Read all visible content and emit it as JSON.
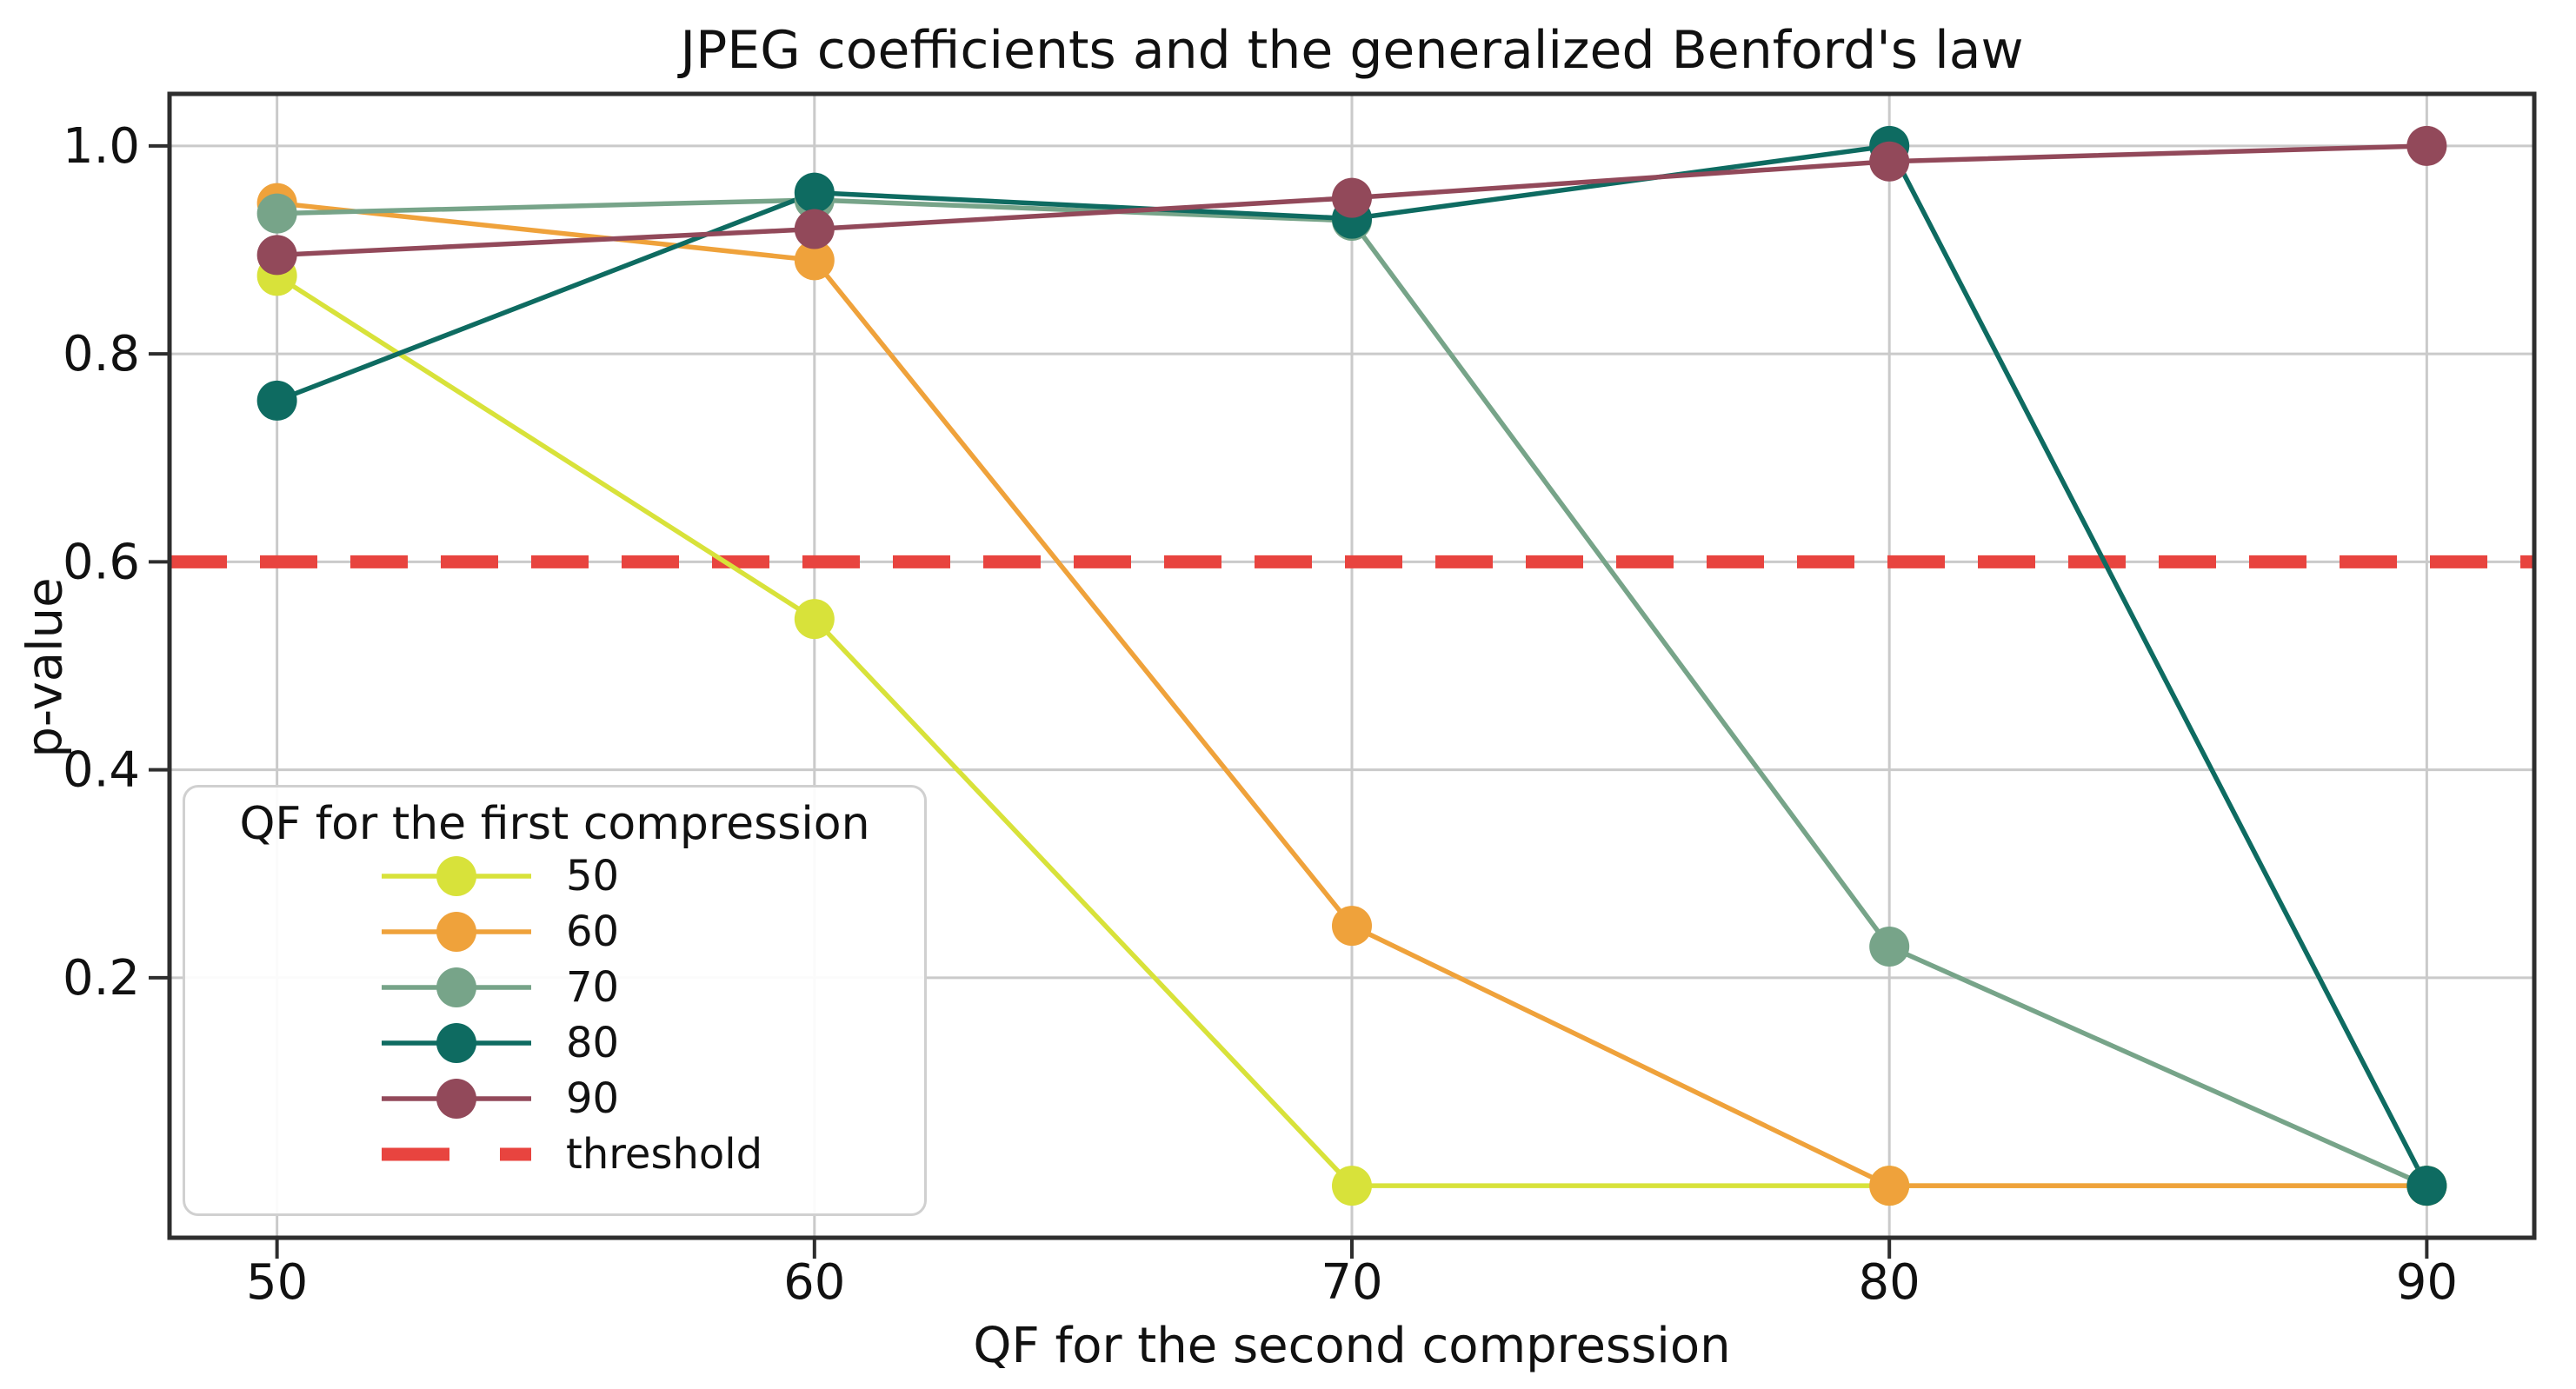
{
  "chart_data": {
    "type": "line",
    "title": "JPEG coefficients and the generalized Benford's law",
    "xlabel": "QF for the second compression",
    "ylabel": "p-value",
    "x": [
      50,
      60,
      70,
      80,
      90
    ],
    "xtick_labels": [
      "50",
      "60",
      "70",
      "80",
      "90"
    ],
    "ytick_values": [
      0.2,
      0.4,
      0.6,
      0.8,
      1.0
    ],
    "ytick_labels": [
      "0.2",
      "0.4",
      "0.6",
      "0.8",
      "1.0"
    ],
    "xlim": [
      48,
      92
    ],
    "ylim": [
      -0.05,
      1.05
    ],
    "grid": true,
    "legend": {
      "title": "QF for the first compression",
      "position": "lower left"
    },
    "series": [
      {
        "name": "50",
        "color": "#d8e23a",
        "values": [
          0.875,
          0.545,
          0.0,
          0.0,
          0.0
        ]
      },
      {
        "name": "60",
        "color": "#efa23b",
        "values": [
          0.945,
          0.89,
          0.25,
          0.0,
          0.0
        ]
      },
      {
        "name": "70",
        "color": "#77a489",
        "values": [
          0.935,
          0.948,
          0.928,
          0.23,
          0.0
        ]
      },
      {
        "name": "80",
        "color": "#0e6b61",
        "values": [
          0.755,
          0.955,
          0.93,
          1.0,
          0.0
        ]
      },
      {
        "name": "90",
        "color": "#92495a",
        "values": [
          0.895,
          0.92,
          0.95,
          0.985,
          1.0
        ]
      }
    ],
    "threshold": {
      "label": "threshold",
      "value": 0.6,
      "color": "#e8443f"
    }
  },
  "styles": {
    "background": "#ffffff",
    "grid_color": "#cacaca",
    "spine_color": "#2e2e2e",
    "text_color": "#111111",
    "legend_border_color": "#d0d0d0"
  }
}
